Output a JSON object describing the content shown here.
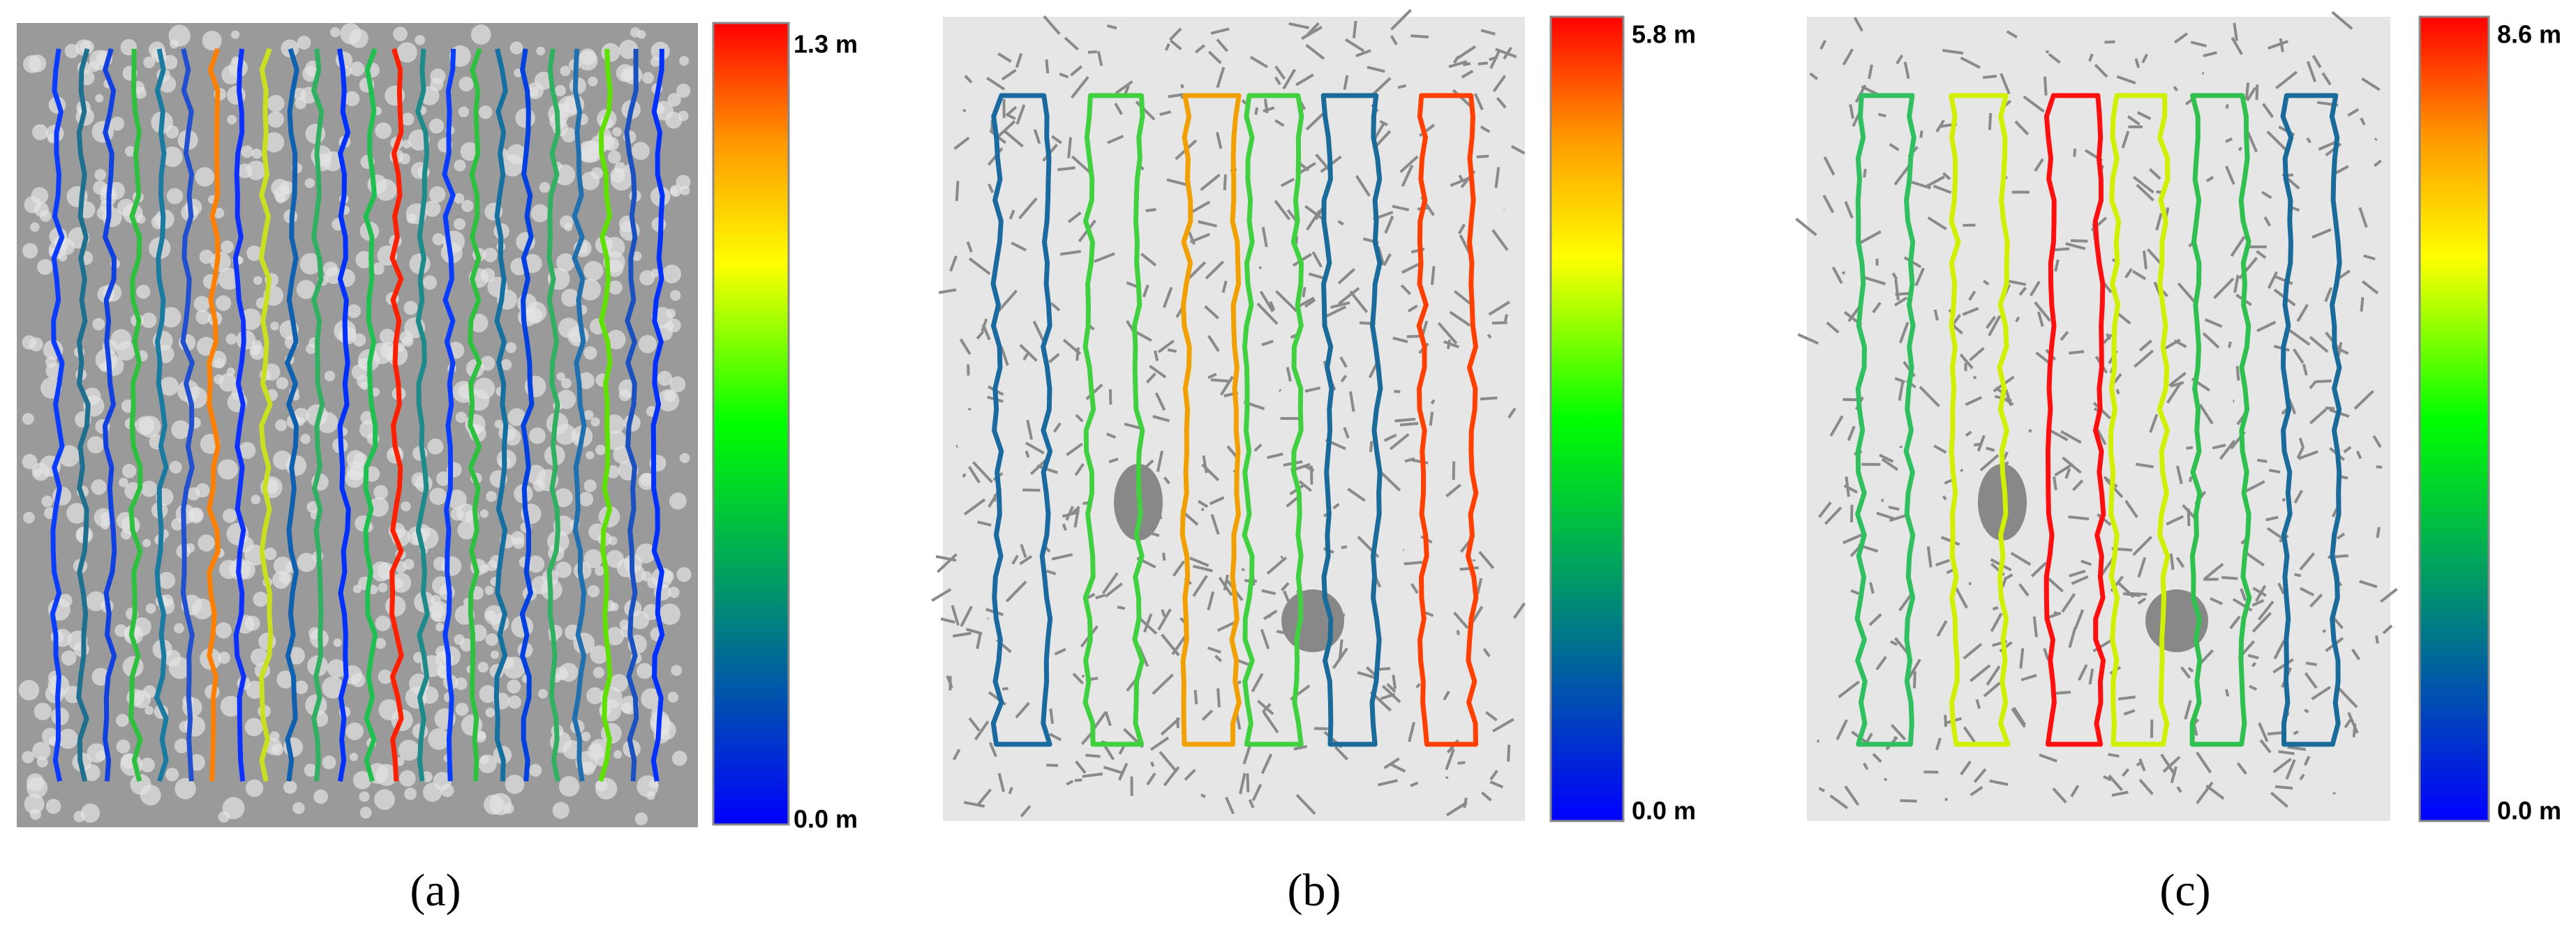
{
  "panels": [
    {
      "label": "(a)",
      "colorbar": {
        "max_label": "1.3 m",
        "min_label": "0.0 m"
      }
    },
    {
      "label": "(b)",
      "colorbar": {
        "max_label": "5.8 m",
        "min_label": "0.0 m"
      }
    },
    {
      "label": "(c)",
      "colorbar": {
        "max_label": "8.6 m",
        "min_label": "0.0 m"
      }
    }
  ]
}
